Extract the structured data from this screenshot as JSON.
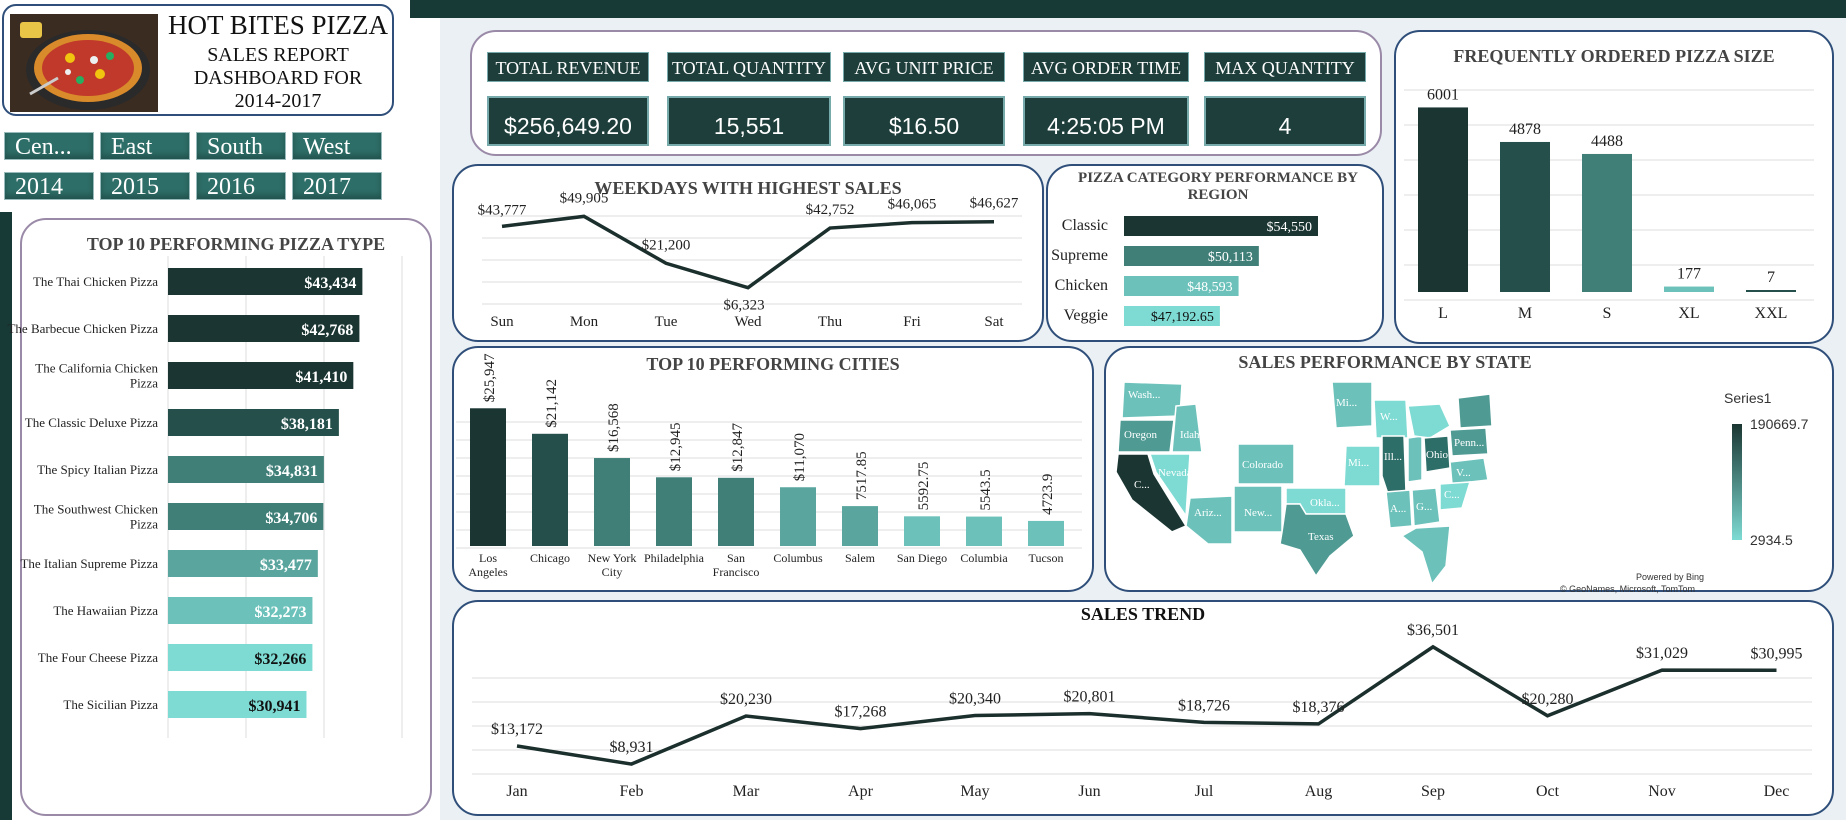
{
  "header": {
    "title": "HOT BITES PIZZA",
    "subtitle_1": "SALES REPORT",
    "subtitle_2": "DASHBOARD FOR",
    "subtitle_3": "2014-2017"
  },
  "slicers": {
    "regions": [
      "Cen...",
      "East",
      "South",
      "West"
    ],
    "years": [
      "2014",
      "2015",
      "2016",
      "2017"
    ]
  },
  "kpis": [
    {
      "label": "TOTAL REVENUE",
      "value": "$256,649.20"
    },
    {
      "label": "TOTAL QUANTITY",
      "value": "15,551"
    },
    {
      "label": "AVG UNIT PRICE",
      "value": "$16.50"
    },
    {
      "label": "AVG ORDER TIME",
      "value": "4:25:05 PM"
    },
    {
      "label": "MAX QUANTITY",
      "value": "4"
    }
  ],
  "colors": {
    "darkest": "#1b3632",
    "dark": "#244f4a",
    "mid": "#3f7f78",
    "teal": "#5aa69f",
    "light": "#6cc2bb",
    "lightest": "#7ddbd3",
    "border": "#2f4f7a",
    "line": "#1b2f2c"
  },
  "chart_data": [
    {
      "id": "top_pizza",
      "type": "bar",
      "orientation": "horizontal",
      "title": "TOP 10 PERFORMING PIZZA TYPE",
      "categories": [
        "The Thai Chicken Pizza",
        "The Barbecue Chicken Pizza",
        "The California Chicken Pizza",
        "The Classic Deluxe Pizza",
        "The Spicy Italian Pizza",
        "The Southwest Chicken Pizza",
        "The Italian Supreme Pizza",
        "The Hawaiian Pizza",
        "The Four Cheese Pizza",
        "The Sicilian Pizza"
      ],
      "values": [
        43434,
        42768,
        41410,
        38181,
        34831,
        34706,
        33477,
        32273,
        32266,
        30941
      ],
      "labels": [
        "$43,434",
        "$42,768",
        "$41,410",
        "$38,181",
        "$34,831",
        "$34,706",
        "$33,477",
        "$32,273",
        "$32,266",
        "$30,941"
      ],
      "xlim": [
        0,
        45000
      ],
      "grid": true
    },
    {
      "id": "weekdays",
      "type": "line",
      "title": "WEEKDAYS WITH HIGHEST SALES",
      "categories": [
        "Sun",
        "Mon",
        "Tue",
        "Wed",
        "Thu",
        "Fri",
        "Sat"
      ],
      "values": [
        43777,
        49905,
        21200,
        6323,
        42752,
        46065,
        46627
      ],
      "labels": [
        "$43,777",
        "$49,905",
        "$21,200",
        "$6,323",
        "$42,752",
        "$46,065",
        "$46,627"
      ],
      "grid": true
    },
    {
      "id": "category_region",
      "type": "bar",
      "orientation": "horizontal",
      "title": "PIZZA CATEGORY PERFORMANCE BY REGION",
      "categories": [
        "Classic",
        "Supreme",
        "Chicken",
        "Veggie"
      ],
      "values": [
        54550,
        50113,
        48593,
        47192.65
      ],
      "labels": [
        "$54,550",
        "$50,113",
        "$48,593",
        "$47,192.65"
      ]
    },
    {
      "id": "pizza_size",
      "type": "bar",
      "title": "FREQUENTLY ORDERED PIZZA SIZE",
      "categories": [
        "L",
        "M",
        "S",
        "XL",
        "XXL"
      ],
      "values": [
        6001,
        4878,
        4488,
        177,
        7
      ],
      "labels": [
        "6001",
        "4878",
        "4488",
        "177",
        "7"
      ],
      "ylim": [
        0,
        6500
      ],
      "grid": true
    },
    {
      "id": "top_cities",
      "type": "bar",
      "title": "TOP 10 PERFORMING CITIES",
      "categories": [
        [
          "Los",
          "Angeles"
        ],
        [
          "Chicago"
        ],
        [
          "New York",
          "City"
        ],
        [
          "Philadelphia"
        ],
        [
          "San",
          "Francisco"
        ],
        [
          "Columbus"
        ],
        [
          "Salem"
        ],
        [
          "San Diego"
        ],
        [
          "Columbia"
        ],
        [
          "Tucson"
        ]
      ],
      "values": [
        25947,
        21142,
        16568,
        12945,
        12847,
        11070,
        7517.85,
        5592.75,
        5543.5,
        4723.9
      ],
      "labels": [
        "$25,947",
        "$21,142",
        "$16,568",
        "$12,945",
        "$12,847",
        "$11,070",
        "7517.85",
        "5592.75",
        "5543.5",
        "4723.9"
      ],
      "ylim": [
        0,
        28000
      ],
      "grid": true
    },
    {
      "id": "sales_trend",
      "type": "line",
      "title": "SALES TREND",
      "categories": [
        "Jan",
        "Feb",
        "Mar",
        "Apr",
        "May",
        "Jun",
        "Jul",
        "Aug",
        "Sep",
        "Oct",
        "Nov",
        "Dec"
      ],
      "values": [
        13172,
        8931,
        20230,
        17268,
        20340,
        20801,
        18726,
        18376,
        36501,
        20280,
        31029,
        30995
      ],
      "labels": [
        "$13,172",
        "$8,931",
        "$20,230",
        "$17,268",
        "$20,340",
        "$20,801",
        "$18,726",
        "$18,376",
        "$36,501",
        "$20,280",
        "$31,029",
        "$30,995"
      ],
      "grid": true
    }
  ],
  "map": {
    "title": "SALES PERFORMANCE BY STATE",
    "legend_title": "Series1",
    "legend_max": "190669.7",
    "legend_min": "2934.5",
    "powered": "Powered by Bing",
    "credit": "© GeoNames, Microsoft, TomTom",
    "labels": [
      "Wash...",
      "Oregon",
      "Idaho",
      "Nevada",
      "C...",
      "Ariz...",
      "Colorado",
      "New...",
      "Okla...",
      "Texas",
      "Mi...",
      "W...",
      "Mi...",
      "Ill...",
      "Ohio",
      "Penn...",
      "V...",
      "A...",
      "G...",
      "C..."
    ]
  }
}
